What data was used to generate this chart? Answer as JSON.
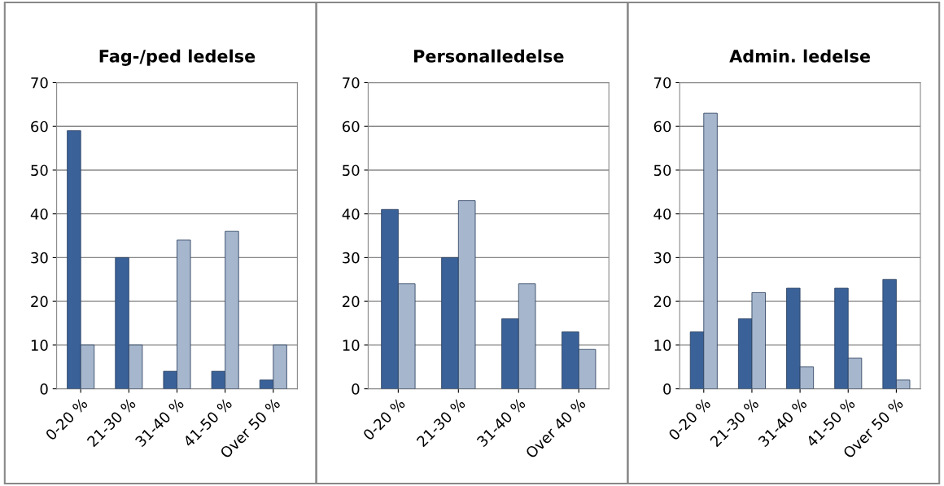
{
  "chart_data": [
    {
      "type": "bar",
      "title": "Fag-/ped ledelse",
      "categories": [
        "0-20 %",
        "21-30 %",
        "31-40 %",
        "41-50 %",
        "Over 50 %"
      ],
      "series": [
        {
          "color": "#3a6299",
          "values": [
            59,
            30,
            4,
            4,
            2
          ]
        },
        {
          "color": "#a6b6cc",
          "values": [
            10,
            10,
            34,
            36,
            10
          ]
        }
      ],
      "ylim": [
        0,
        70
      ],
      "yticks": [
        0,
        10,
        20,
        30,
        40,
        50,
        60,
        70
      ],
      "grid": "y"
    },
    {
      "type": "bar",
      "title": "Personalledelse",
      "categories": [
        "0-20 %",
        "21-30 %",
        "31-40 %",
        "Over 40 %"
      ],
      "series": [
        {
          "color": "#3a6299",
          "values": [
            41,
            30,
            16,
            13
          ]
        },
        {
          "color": "#a6b6cc",
          "values": [
            24,
            43,
            24,
            9
          ]
        }
      ],
      "ylim": [
        0,
        70
      ],
      "yticks": [
        0,
        10,
        20,
        30,
        40,
        50,
        60,
        70
      ],
      "grid": "y"
    },
    {
      "type": "bar",
      "title": "Admin. ledelse",
      "categories": [
        "0-20 %",
        "21-30 %",
        "31-40 %",
        "41-50 %",
        "Over 50 %"
      ],
      "series": [
        {
          "color": "#3a6299",
          "values": [
            13,
            16,
            23,
            23,
            25
          ]
        },
        {
          "color": "#a6b6cc",
          "values": [
            63,
            22,
            5,
            7,
            2
          ]
        }
      ],
      "ylim": [
        0,
        70
      ],
      "yticks": [
        0,
        10,
        20,
        30,
        40,
        50,
        60,
        70
      ],
      "grid": "y"
    }
  ]
}
